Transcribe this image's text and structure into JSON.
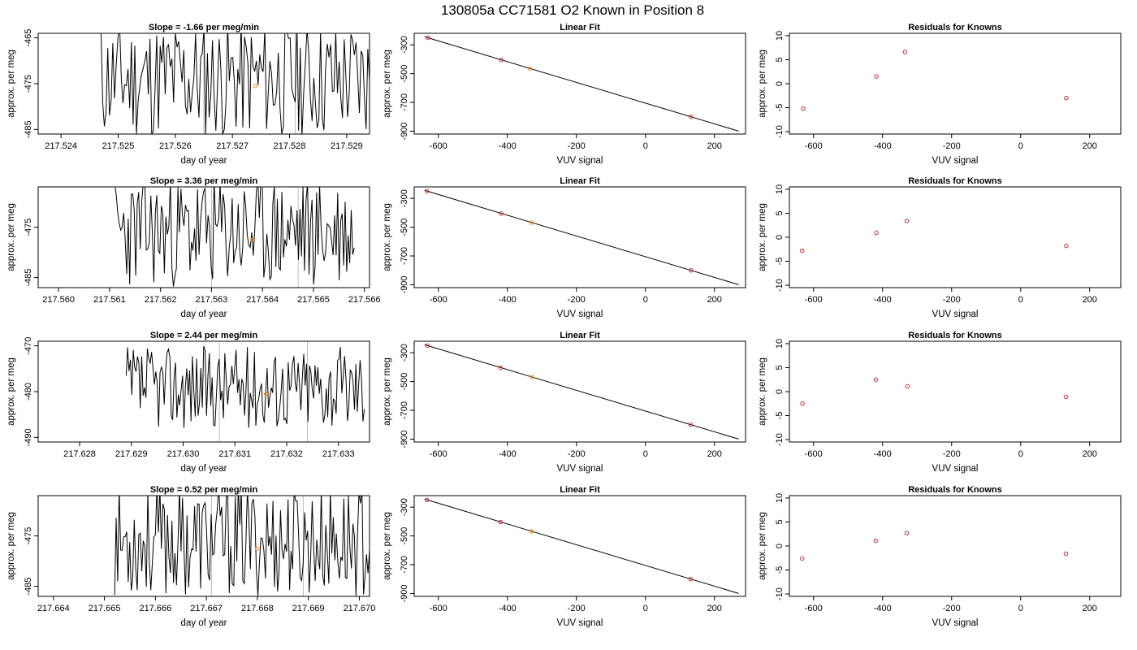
{
  "figure": {
    "title": "130805a     CC71581   O2 Known in Position  8"
  },
  "colors": {
    "line": "#000000",
    "point_red": "#d62728",
    "point_orange": "#ff8c00",
    "ref_line": "#bdbdbd"
  },
  "chart_data": [
    {
      "type": "line",
      "title": "Slope =  -1.66  per meg/min",
      "xlabel": "day of year",
      "ylabel": "approx. per meg",
      "xlim": [
        217.5236,
        217.5294
      ],
      "ylim": [
        -486,
        -464
      ],
      "xticks": [
        217.524,
        217.525,
        217.526,
        217.527,
        217.528,
        217.529
      ],
      "xtick_labels": [
        "217.524",
        "217.525",
        "217.526",
        "217.527",
        "217.528",
        "217.529"
      ],
      "yticks": [
        -465,
        -475,
        -485
      ],
      "ytick_labels": [
        "-465",
        "-475",
        "-485"
      ],
      "ref_lines_x": [
        217.5265,
        217.5281
      ],
      "trace": {
        "x_start": 217.5247,
        "x_end": 217.5294,
        "n": 160,
        "y_mean": -474,
        "y_amp": 13,
        "seed": 11
      },
      "marker": {
        "x": 217.5274,
        "y": -475.5
      }
    },
    {
      "type": "scatter",
      "title": "Linear Fit",
      "xlabel": "VUV signal",
      "ylabel": "approx. per meg",
      "xlim": [
        -670,
        290
      ],
      "ylim": [
        -920,
        -220
      ],
      "xticks": [
        -600,
        -400,
        -200,
        0,
        200
      ],
      "xtick_labels": [
        "-600",
        "-400",
        "-200",
        "0",
        "200"
      ],
      "yticks": [
        -300,
        -500,
        -700,
        -900
      ],
      "ytick_labels": [
        "-300",
        "-500",
        "-700",
        "-900"
      ],
      "fit_line": {
        "slope": -0.72,
        "intercept": -705,
        "x_range": [
          -640,
          270
        ]
      },
      "points": [
        {
          "x": -630,
          "y": -251,
          "color": "red"
        },
        {
          "x": -418,
          "y": -405,
          "color": "red"
        },
        {
          "x": -335,
          "y": -465,
          "color": "orange"
        },
        {
          "x": 132,
          "y": -800,
          "color": "red"
        }
      ]
    },
    {
      "type": "scatter",
      "title": "Residuals for Knowns",
      "xlabel": "VUV signal",
      "ylabel": "approx. per meg",
      "xlim": [
        -670,
        290
      ],
      "ylim": [
        -10.5,
        10.5
      ],
      "xticks": [
        -600,
        -400,
        -200,
        0,
        200
      ],
      "xtick_labels": [
        "-600",
        "-400",
        "-200",
        "0",
        "200"
      ],
      "yticks": [
        10,
        5,
        0,
        -5,
        -10
      ],
      "ytick_labels": [
        "10",
        "5",
        "0",
        "-5",
        "-10"
      ],
      "points": [
        {
          "x": -630,
          "y": -5.2,
          "color": "red"
        },
        {
          "x": -418,
          "y": 1.5,
          "color": "red"
        },
        {
          "x": -335,
          "y": 6.6,
          "color": "red"
        },
        {
          "x": 132,
          "y": -3.0,
          "color": "red"
        }
      ]
    },
    {
      "type": "line",
      "title": "Slope =  3.36  per meg/min",
      "xlabel": "day of year",
      "ylabel": "approx. per meg",
      "xlim": [
        217.5596,
        217.5661
      ],
      "ylim": [
        -487,
        -467
      ],
      "xticks": [
        217.56,
        217.561,
        217.562,
        217.563,
        217.564,
        217.565,
        217.566
      ],
      "xtick_labels": [
        "217.560",
        "217.561",
        "217.562",
        "217.563",
        "217.564",
        "217.565",
        "217.566"
      ],
      "yticks": [
        -475,
        -485
      ],
      "ytick_labels": [
        "-475",
        "-485"
      ],
      "ref_lines_x": [
        217.563,
        217.5647
      ],
      "trace": {
        "x_start": 217.5611,
        "x_end": 217.5658,
        "n": 160,
        "y_mean": -476,
        "y_amp": 11,
        "seed": 23
      },
      "marker": {
        "x": 217.5638,
        "y": -477.5
      }
    },
    {
      "type": "scatter",
      "title": "Linear Fit",
      "xlabel": "VUV signal",
      "ylabel": "approx. per meg",
      "xlim": [
        -670,
        290
      ],
      "ylim": [
        -920,
        -220
      ],
      "xticks": [
        -600,
        -400,
        -200,
        0,
        200
      ],
      "xtick_labels": [
        "-600",
        "-400",
        "-200",
        "0",
        "200"
      ],
      "yticks": [
        -300,
        -500,
        -700,
        -900
      ],
      "ytick_labels": [
        "-300",
        "-500",
        "-700",
        "-900"
      ],
      "fit_line": {
        "slope": -0.72,
        "intercept": -705,
        "x_range": [
          -640,
          270
        ]
      },
      "points": [
        {
          "x": -633,
          "y": -250,
          "color": "red"
        },
        {
          "x": -418,
          "y": -405,
          "color": "red"
        },
        {
          "x": -330,
          "y": -468,
          "color": "orange"
        },
        {
          "x": 132,
          "y": -800,
          "color": "red"
        }
      ]
    },
    {
      "type": "scatter",
      "title": "Residuals for Knowns",
      "xlabel": "VUV signal",
      "ylabel": "approx. per meg",
      "xlim": [
        -670,
        290
      ],
      "ylim": [
        -10.5,
        10.5
      ],
      "xticks": [
        -600,
        -400,
        -200,
        0,
        200
      ],
      "xtick_labels": [
        "-600",
        "-400",
        "-200",
        "0",
        "200"
      ],
      "yticks": [
        10,
        5,
        0,
        -5,
        -10
      ],
      "ytick_labels": [
        "10",
        "5",
        "0",
        "-5",
        "-10"
      ],
      "points": [
        {
          "x": -633,
          "y": -2.8,
          "color": "red"
        },
        {
          "x": -418,
          "y": 0.9,
          "color": "red"
        },
        {
          "x": -330,
          "y": 3.4,
          "color": "red"
        },
        {
          "x": 132,
          "y": -1.8,
          "color": "red"
        }
      ]
    },
    {
      "type": "line",
      "title": "Slope =  2.44  per meg/min",
      "xlabel": "day of year",
      "ylabel": "approx. per meg",
      "xlim": [
        217.6272,
        217.6336
      ],
      "ylim": [
        -491,
        -469
      ],
      "xticks": [
        217.628,
        217.629,
        217.63,
        217.631,
        217.632,
        217.633
      ],
      "xtick_labels": [
        "217.628",
        "217.629",
        "217.630",
        "217.631",
        "217.632",
        "217.633"
      ],
      "yticks": [
        -470,
        -480,
        -490
      ],
      "ytick_labels": [
        "-470",
        "-480",
        "-490"
      ],
      "ref_lines_x": [
        217.6307,
        217.6324
      ],
      "trace": {
        "x_start": 217.6289,
        "x_end": 217.6335,
        "n": 170,
        "y_mean": -479,
        "y_amp": 9,
        "seed": 37
      },
      "marker": {
        "x": 217.6316,
        "y": -480.5
      }
    },
    {
      "type": "scatter",
      "title": "Linear Fit",
      "xlabel": "VUV signal",
      "ylabel": "approx. per meg",
      "xlim": [
        -670,
        290
      ],
      "ylim": [
        -920,
        -220
      ],
      "xticks": [
        -600,
        -400,
        -200,
        0,
        200
      ],
      "xtick_labels": [
        "-600",
        "-400",
        "-200",
        "0",
        "200"
      ],
      "yticks": [
        -300,
        -500,
        -700,
        -900
      ],
      "ytick_labels": [
        "-300",
        "-500",
        "-700",
        "-900"
      ],
      "fit_line": {
        "slope": -0.72,
        "intercept": -705,
        "x_range": [
          -640,
          270
        ]
      },
      "points": [
        {
          "x": -632,
          "y": -250,
          "color": "red"
        },
        {
          "x": -420,
          "y": -404,
          "color": "red"
        },
        {
          "x": -328,
          "y": -469,
          "color": "orange"
        },
        {
          "x": 131,
          "y": -800,
          "color": "red"
        }
      ]
    },
    {
      "type": "scatter",
      "title": "Residuals for Knowns",
      "xlabel": "VUV signal",
      "ylabel": "approx. per meg",
      "xlim": [
        -670,
        290
      ],
      "ylim": [
        -10.5,
        10.5
      ],
      "xticks": [
        -600,
        -400,
        -200,
        0,
        200
      ],
      "xtick_labels": [
        "-600",
        "-400",
        "-200",
        "0",
        "200"
      ],
      "yticks": [
        10,
        5,
        0,
        -5,
        -10
      ],
      "ytick_labels": [
        "10",
        "5",
        "0",
        "-5",
        "-10"
      ],
      "points": [
        {
          "x": -632,
          "y": -2.5,
          "color": "red"
        },
        {
          "x": -420,
          "y": 2.5,
          "color": "red"
        },
        {
          "x": -328,
          "y": 1.1,
          "color": "red"
        },
        {
          "x": 131,
          "y": -1.1,
          "color": "red"
        }
      ]
    },
    {
      "type": "line",
      "title": "Slope =  0.52  per meg/min",
      "xlabel": "day of year",
      "ylabel": "approx. per meg",
      "xlim": [
        217.6637,
        217.6702
      ],
      "ylim": [
        -487,
        -467
      ],
      "xticks": [
        217.664,
        217.665,
        217.666,
        217.667,
        217.668,
        217.669,
        217.67
      ],
      "xtick_labels": [
        "217.664",
        "217.665",
        "217.666",
        "217.667",
        "217.668",
        "217.669",
        "217.670"
      ],
      "yticks": [
        -475,
        -485
      ],
      "ytick_labels": [
        "-475",
        "-485"
      ],
      "ref_lines_x": [
        217.6671,
        217.6689
      ],
      "trace": {
        "x_start": 217.6652,
        "x_end": 217.6702,
        "n": 170,
        "y_mean": -476,
        "y_amp": 11,
        "seed": 53
      },
      "marker": {
        "x": 217.668,
        "y": -477.5
      }
    },
    {
      "type": "scatter",
      "title": "Linear Fit",
      "xlabel": "VUV signal",
      "ylabel": "approx. per meg",
      "xlim": [
        -670,
        290
      ],
      "ylim": [
        -920,
        -220
      ],
      "xticks": [
        -600,
        -400,
        -200,
        0,
        200
      ],
      "xtick_labels": [
        "-600",
        "-400",
        "-200",
        "0",
        "200"
      ],
      "yticks": [
        -300,
        -500,
        -700,
        -900
      ],
      "ytick_labels": [
        "-300",
        "-500",
        "-700",
        "-900"
      ],
      "fit_line": {
        "slope": -0.72,
        "intercept": -705,
        "x_range": [
          -640,
          270
        ]
      },
      "points": [
        {
          "x": -633,
          "y": -250,
          "color": "red"
        },
        {
          "x": -420,
          "y": -404,
          "color": "red"
        },
        {
          "x": -330,
          "y": -468,
          "color": "orange"
        },
        {
          "x": 131,
          "y": -800,
          "color": "red"
        }
      ]
    },
    {
      "type": "scatter",
      "title": "Residuals for Knowns",
      "xlabel": "VUV signal",
      "ylabel": "approx. per meg",
      "xlim": [
        -670,
        290
      ],
      "ylim": [
        -10.5,
        10.5
      ],
      "xticks": [
        -600,
        -400,
        -200,
        0,
        200
      ],
      "xtick_labels": [
        "-600",
        "-400",
        "-200",
        "0",
        "200"
      ],
      "yticks": [
        10,
        5,
        0,
        -5,
        -10
      ],
      "ytick_labels": [
        "10",
        "5",
        "0",
        "-5",
        "-10"
      ],
      "points": [
        {
          "x": -633,
          "y": -2.6,
          "color": "red"
        },
        {
          "x": -420,
          "y": 1.1,
          "color": "red"
        },
        {
          "x": -330,
          "y": 2.7,
          "color": "red"
        },
        {
          "x": 131,
          "y": -1.6,
          "color": "red"
        }
      ]
    }
  ]
}
